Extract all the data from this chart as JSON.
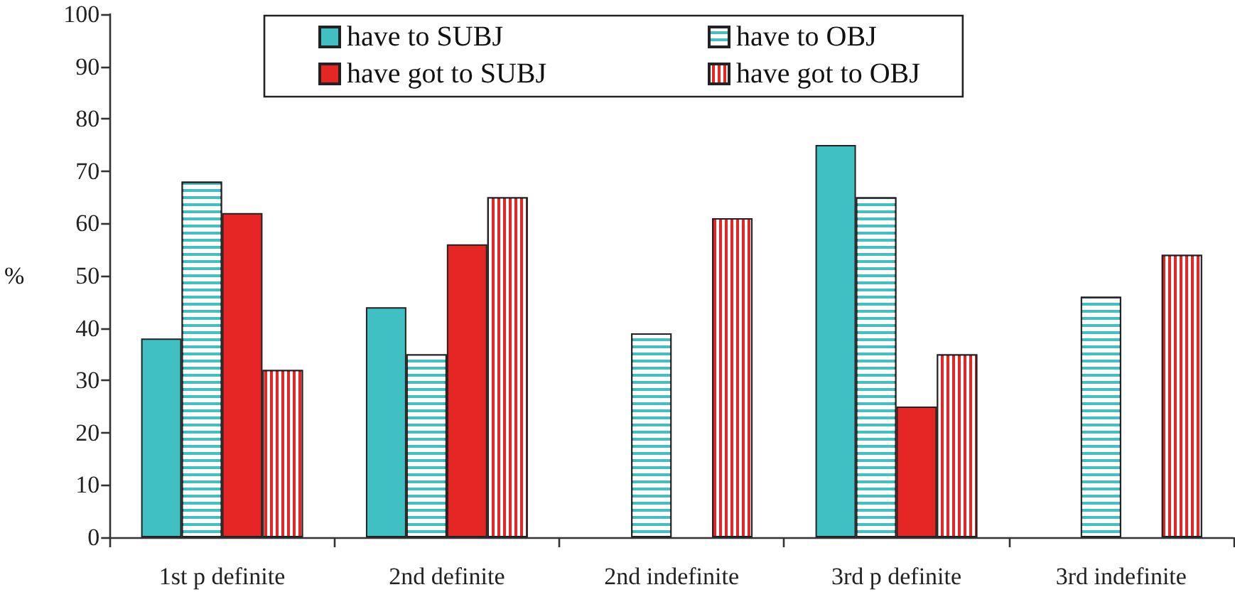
{
  "chart_data": {
    "type": "bar",
    "categories": [
      "1st p definite",
      "2nd definite",
      "2nd indefinite",
      "3rd p definite",
      "3rd indefinite"
    ],
    "series": [
      {
        "name": "have to SUBJ",
        "color": "#41c0c4",
        "values": [
          38,
          44,
          null,
          75,
          null
        ]
      },
      {
        "name": "have to OBJ",
        "color": "#41c0c4",
        "values": [
          68,
          35,
          39,
          65,
          46
        ]
      },
      {
        "name": "have got to SUBJ",
        "color": "#e52624",
        "values": [
          62,
          56,
          null,
          25,
          null
        ]
      },
      {
        "name": "have got to OBJ",
        "color": "#e52624",
        "values": [
          32,
          65,
          61,
          35,
          54
        ]
      }
    ],
    "ylabel": "%",
    "ylim": [
      0,
      100
    ],
    "yticks": [
      0,
      10,
      20,
      30,
      40,
      50,
      60,
      70,
      80,
      90,
      100
    ],
    "legend": "top"
  }
}
